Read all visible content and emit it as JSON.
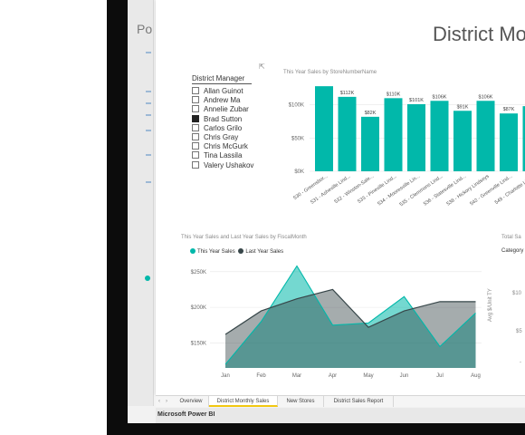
{
  "left_pane": {
    "title_partial": "Po"
  },
  "report": {
    "title": "District Mon"
  },
  "slicer": {
    "title": "District Manager",
    "items": [
      {
        "label": "Allan Guinot",
        "selected": false
      },
      {
        "label": "Andrew Ma",
        "selected": false
      },
      {
        "label": "Annelie Zubar",
        "selected": false
      },
      {
        "label": "Brad Sutton",
        "selected": true
      },
      {
        "label": "Carlos Grilo",
        "selected": false
      },
      {
        "label": "Chris Gray",
        "selected": false
      },
      {
        "label": "Chris McGurk",
        "selected": false
      },
      {
        "label": "Tina Lassila",
        "selected": false
      },
      {
        "label": "Valery Ushakov",
        "selected": false
      }
    ]
  },
  "chart_data": [
    {
      "type": "bar",
      "title": "This Year Sales by StoreNumberName",
      "categories": [
        "530 - Greensbor...",
        "531 - Asheville Lind...",
        "532 - Winston-Sale...",
        "533 - Pineville Lind...",
        "534 - Mooresville Lin...",
        "535 - Clemmons Lind...",
        "536 - Statesville Lind...",
        "538 - Hickory Lindseys",
        "542 - Greenville Lind...",
        "549 - Charlotte Lind...",
        "550 - Ka..."
      ],
      "values": [
        128,
        112,
        82,
        110,
        101,
        106,
        91,
        106,
        87,
        98,
        95
      ],
      "data_labels": [
        "",
        "$112K",
        "$82K",
        "$110K",
        "$101K",
        "$106K",
        "$91K",
        "$106K",
        "$87K",
        "",
        ""
      ],
      "ytick_labels": [
        "$0K",
        "$50K",
        "$100K"
      ],
      "ylim": [
        0,
        135
      ],
      "color": "#01b8aa"
    },
    {
      "type": "area",
      "title": "This Year Sales and Last Year Sales by FiscalMonth",
      "categories": [
        "Jan",
        "Feb",
        "Mar",
        "Apr",
        "May",
        "Jun",
        "Jul",
        "Aug"
      ],
      "series": [
        {
          "name": "This Year Sales",
          "values": [
            120,
            180,
            258,
            175,
            178,
            215,
            145,
            192
          ],
          "color": "#01b8aa"
        },
        {
          "name": "Last Year Sales",
          "values": [
            162,
            195,
            212,
            225,
            172,
            195,
            208,
            208
          ],
          "color": "#374649"
        }
      ],
      "ytick_labels": [
        "$150K",
        "$200K",
        "$250K"
      ],
      "ylim": [
        115,
        265
      ]
    }
  ],
  "partial_right": {
    "title": "Total Sa",
    "subtitle": "Category",
    "ylabel": "Avg $/Unit TY",
    "ticks": [
      "$10",
      "$5",
      "-"
    ]
  },
  "tabs": {
    "items": [
      "Overview",
      "District Monthly Sales",
      "New Stores",
      "District Sales Report"
    ],
    "active": "District Monthly Sales"
  },
  "status_bar": {
    "app_name": "Microsoft Power BI"
  }
}
